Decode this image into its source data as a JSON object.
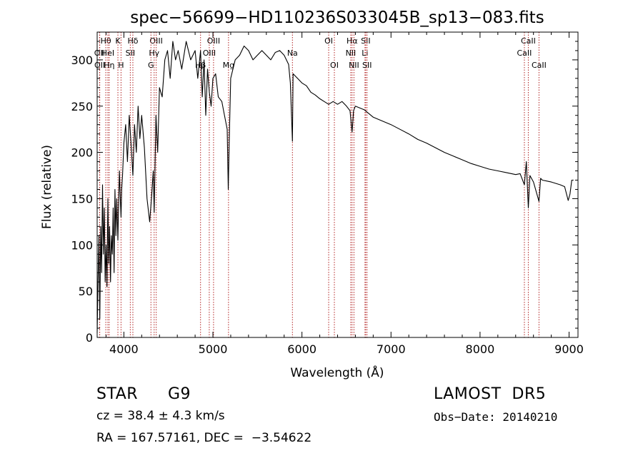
{
  "chart_data": {
    "type": "line",
    "title": "spec−56699−HD110236S033045B_sp13−083.fits",
    "xlabel": "Wavelength (Å)",
    "ylabel": "Flux (relative)",
    "xlim": [
      3700,
      9100
    ],
    "ylim": [
      0,
      330
    ],
    "x_ticks": [
      4000,
      5000,
      6000,
      7000,
      8000,
      9000
    ],
    "y_ticks": [
      0,
      50,
      100,
      150,
      200,
      250,
      300
    ],
    "line_color": "#000000",
    "marker_color": "#b22222",
    "series": [
      {
        "x": [
          3700,
          3710,
          3720,
          3730,
          3740,
          3750,
          3760,
          3770,
          3780,
          3790,
          3800,
          3810,
          3820,
          3830,
          3840,
          3850,
          3860,
          3870,
          3880,
          3890,
          3900,
          3910,
          3920,
          3933,
          3940,
          3950,
          3960,
          3968,
          3975,
          3985,
          4000,
          4020,
          4040,
          4060,
          4080,
          4101,
          4120,
          4140,
          4160,
          4180,
          4200,
          4230,
          4260,
          4290,
          4310,
          4330,
          4340,
          4360,
          4380,
          4400,
          4430,
          4460,
          4490,
          4520,
          4550,
          4580,
          4610,
          4650,
          4700,
          4750,
          4800,
          4830,
          4861,
          4880,
          4900,
          4920,
          4940,
          4960,
          4980,
          5000,
          5030,
          5060,
          5100,
          5130,
          5160,
          5172,
          5183,
          5200,
          5250,
          5300,
          5350,
          5400,
          5450,
          5500,
          5550,
          5600,
          5650,
          5700,
          5750,
          5800,
          5850,
          5870,
          5893,
          5900,
          5950,
          6000,
          6050,
          6100,
          6150,
          6200,
          6250,
          6300,
          6350,
          6400,
          6450,
          6500,
          6540,
          6563,
          6580,
          6600,
          6650,
          6700,
          6750,
          6800,
          6900,
          7000,
          7100,
          7200,
          7300,
          7400,
          7500,
          7600,
          7700,
          7800,
          7900,
          8000,
          8100,
          8200,
          8300,
          8400,
          8450,
          8498,
          8520,
          8542,
          8560,
          8600,
          8662,
          8680,
          8700,
          8800,
          8900,
          8950,
          8990,
          9010,
          9030,
          9050
        ],
        "y": [
          5,
          60,
          110,
          20,
          120,
          70,
          165,
          90,
          140,
          60,
          100,
          55,
          150,
          80,
          120,
          60,
          110,
          90,
          140,
          70,
          160,
          110,
          150,
          105,
          140,
          180,
          150,
          130,
          160,
          175,
          210,
          230,
          190,
          240,
          210,
          175,
          230,
          200,
          250,
          215,
          240,
          205,
          150,
          125,
          150,
          180,
          135,
          240,
          200,
          270,
          260,
          300,
          310,
          280,
          320,
          300,
          310,
          290,
          320,
          300,
          310,
          280,
          310,
          260,
          300,
          240,
          290,
          265,
          250,
          280,
          285,
          260,
          255,
          240,
          225,
          160,
          210,
          280,
          300,
          305,
          315,
          310,
          300,
          305,
          310,
          305,
          300,
          308,
          310,
          305,
          295,
          275,
          212,
          285,
          280,
          275,
          272,
          265,
          262,
          258,
          255,
          252,
          255,
          252,
          255,
          250,
          245,
          222,
          245,
          250,
          248,
          246,
          242,
          238,
          234,
          230,
          225,
          220,
          214,
          210,
          205,
          200,
          196,
          192,
          188,
          185,
          182,
          180,
          178,
          176,
          177,
          165,
          190,
          140,
          175,
          168,
          147,
          172,
          170,
          168,
          165,
          163,
          148,
          155,
          170,
          170
        ]
      }
    ],
    "lines": [
      {
        "label": "Hθ",
        "x": 3797,
        "tier": 0
      },
      {
        "label": "OII",
        "x": 3727,
        "tier": 1
      },
      {
        "label": "OII",
        "x": 3729,
        "tier": 2
      },
      {
        "label": "HeI",
        "x": 3820,
        "tier": 1
      },
      {
        "label": "Hη",
        "x": 3835,
        "tier": 2
      },
      {
        "label": "K",
        "x": 3933,
        "tier": 0
      },
      {
        "label": "H",
        "x": 3968,
        "tier": 2
      },
      {
        "label": "Hδ",
        "x": 4101,
        "tier": 0
      },
      {
        "label": "SII",
        "x": 4072,
        "tier": 1
      },
      {
        "label": "OIII",
        "x": 4363,
        "tier": 0
      },
      {
        "label": "Hγ",
        "x": 4340,
        "tier": 1
      },
      {
        "label": "G",
        "x": 4304,
        "tier": 2
      },
      {
        "label": "Hβ",
        "x": 4861,
        "tier": 2
      },
      {
        "label": "OIII",
        "x": 5007,
        "tier": 0
      },
      {
        "label": "OIII",
        "x": 4959,
        "tier": 1
      },
      {
        "label": "Mg",
        "x": 5175,
        "tier": 2
      },
      {
        "label": "Na",
        "x": 5893,
        "tier": 1
      },
      {
        "label": "OI",
        "x": 6300,
        "tier": 0
      },
      {
        "label": "OI",
        "x": 6364,
        "tier": 2
      },
      {
        "label": "Hα",
        "x": 6563,
        "tier": 0
      },
      {
        "label": "NII",
        "x": 6548,
        "tier": 1
      },
      {
        "label": "NII",
        "x": 6584,
        "tier": 2
      },
      {
        "label": "SII",
        "x": 6716,
        "tier": 0
      },
      {
        "label": "Li",
        "x": 6708,
        "tier": 1
      },
      {
        "label": "SII",
        "x": 6731,
        "tier": 2
      },
      {
        "label": "CaII",
        "x": 8542,
        "tier": 0
      },
      {
        "label": "CaII",
        "x": 8498,
        "tier": 1
      },
      {
        "label": "CaII",
        "x": 8662,
        "tier": 2
      }
    ]
  },
  "info": {
    "object_type": "STAR",
    "subclass": "G9",
    "survey": "LAMOST  DR5",
    "cz": "cz = 38.4 ± 4.3 km/s",
    "obs_date": "Obs−Date: 20140210",
    "coords": "RA = 167.57161, DEC =  −3.54622"
  }
}
